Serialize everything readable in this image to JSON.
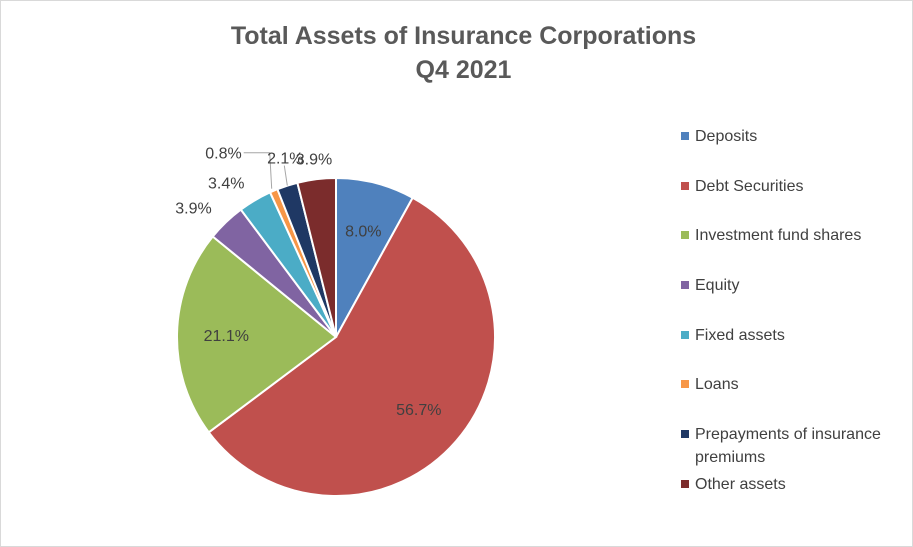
{
  "chart_data": {
    "type": "pie",
    "title": "Total Assets of Insurance Corporations",
    "subtitle": "Q4 2021",
    "legend_position": "right",
    "slices": [
      {
        "label": "Deposits",
        "value": 8.0,
        "display": "8.0%",
        "color": "#4f81bd"
      },
      {
        "label": "Debt Securities",
        "value": 56.7,
        "display": "56.7%",
        "color": "#c0504d"
      },
      {
        "label": "Investment fund shares",
        "value": 21.1,
        "display": "21.1%",
        "color": "#9bbb59"
      },
      {
        "label": "Equity",
        "value": 3.9,
        "display": "3.9%",
        "color": "#8064a2"
      },
      {
        "label": "Fixed assets",
        "value": 3.4,
        "display": "3.4%",
        "color": "#4bacc6"
      },
      {
        "label": "Loans",
        "value": 0.8,
        "display": "0.8%",
        "color": "#f79646"
      },
      {
        "label": "Prepayments of insurance premiums",
        "value": 2.1,
        "display": "2.1%",
        "color": "#1f3864"
      },
      {
        "label": "Other assets",
        "value": 3.9,
        "display": "3.9%",
        "color": "#7b2c2c"
      }
    ]
  }
}
